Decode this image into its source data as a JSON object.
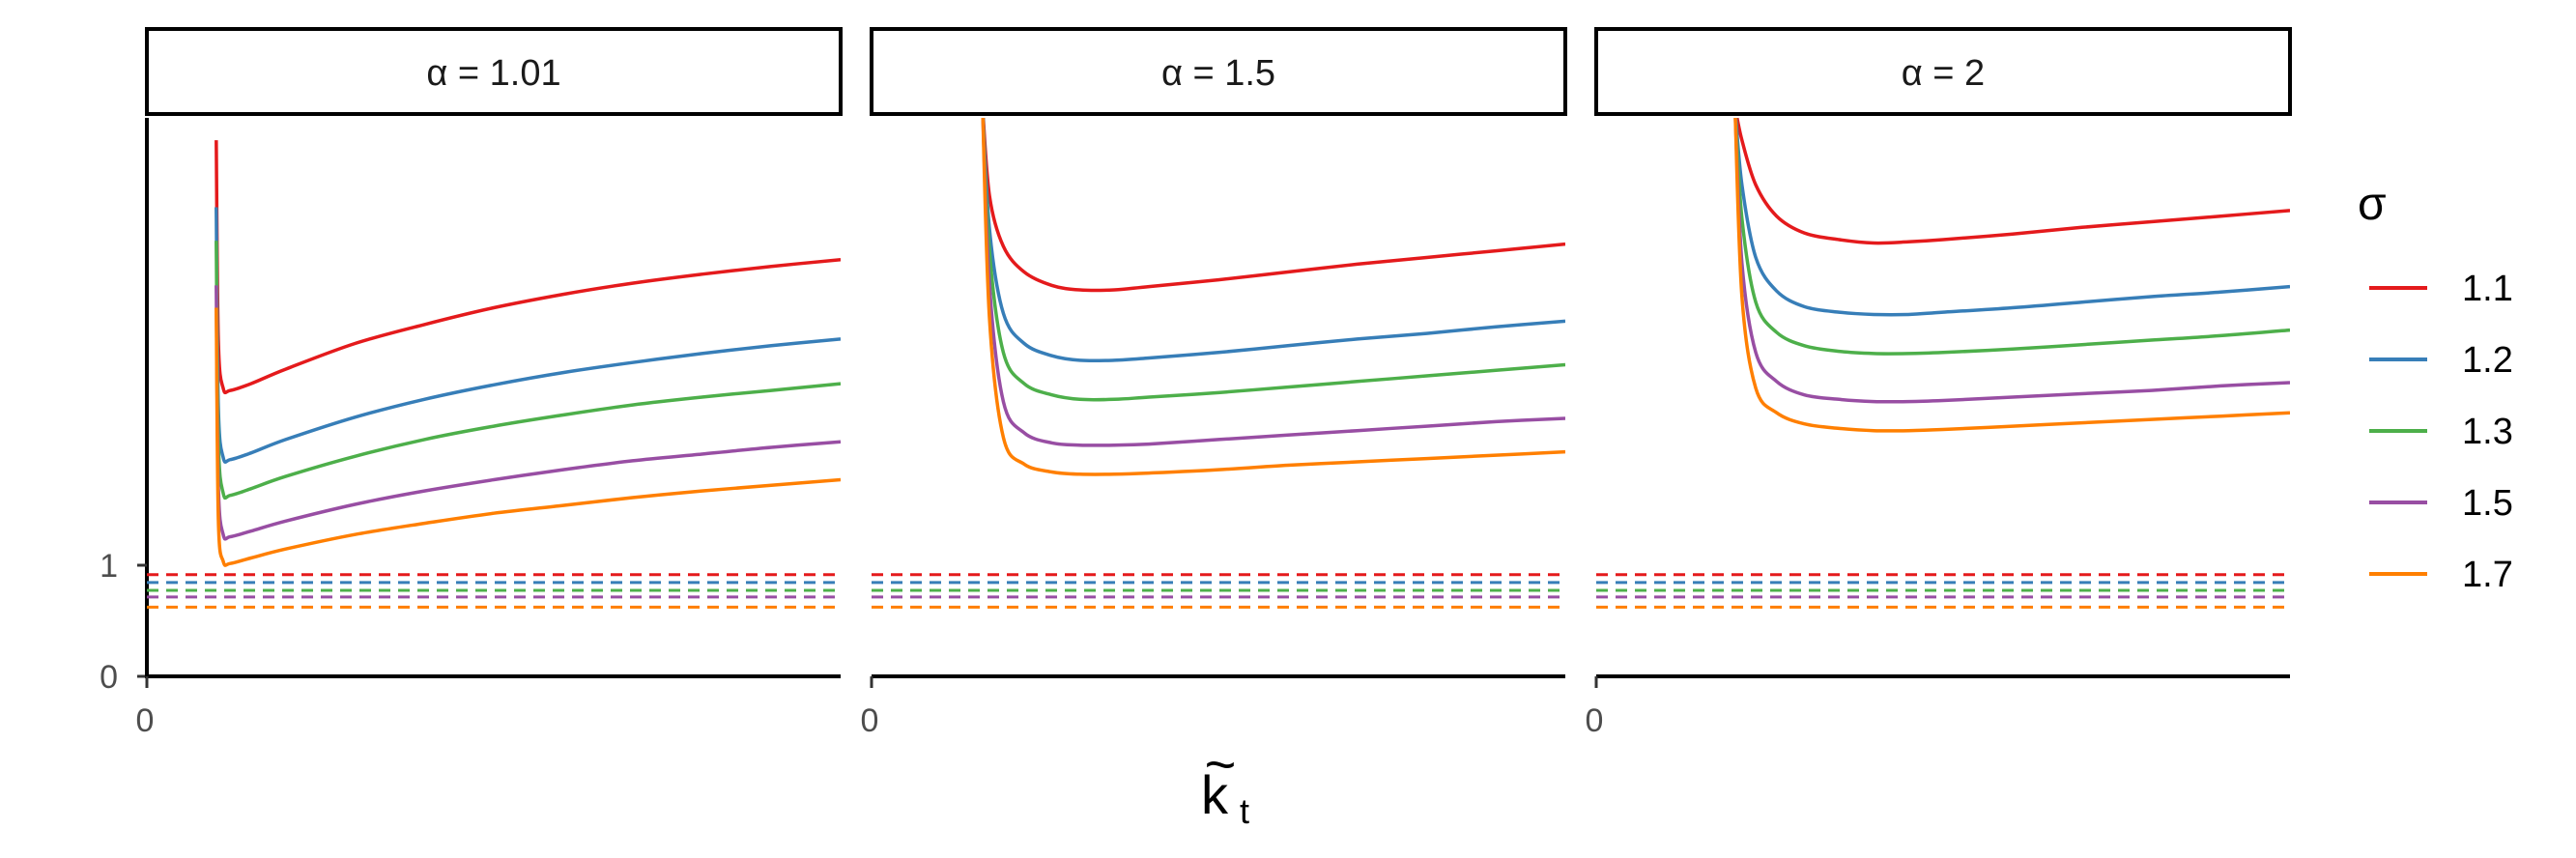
{
  "chart_data": {
    "type": "line",
    "facet_labels": [
      "α = 1.01",
      "α = 1.5",
      "α = 2"
    ],
    "xlabel_base": "k",
    "xlabel_accent": "~",
    "xlabel_subscript": "t",
    "x_tick_labels": [
      "0"
    ],
    "y_tick_labels": [
      "1",
      "0"
    ],
    "y_ticks": [
      1,
      0
    ],
    "x_range": [
      0,
      10
    ],
    "y_range": [
      0,
      5
    ],
    "grid": false,
    "legend_position": "right",
    "legend": {
      "title": "σ",
      "entries": [
        {
          "label": "1.1",
          "color": "#E41A1C"
        },
        {
          "label": "1.2",
          "color": "#377EB8"
        },
        {
          "label": "1.3",
          "color": "#4DAF4A"
        },
        {
          "label": "1.5",
          "color": "#984EA3"
        },
        {
          "label": "1.7",
          "color": "#FF7F00"
        }
      ]
    },
    "asymptotes": {
      "style": "dashed",
      "values": [
        0.91,
        0.84,
        0.77,
        0.71,
        0.62
      ]
    },
    "panels": [
      {
        "label": "α = 1.01",
        "series": [
          {
            "sigma": "1.1",
            "color": "#E41A1C",
            "x": [
              1.0,
              1.03,
              1.1,
              1.2,
              1.5,
              2.0,
              3.0,
              4.0,
              5.0,
              6.0,
              7.0,
              8.0,
              9.0,
              10.0
            ],
            "y": [
              4.8,
              3.0,
              2.58,
              2.56,
              2.62,
              2.75,
              2.98,
              3.15,
              3.3,
              3.42,
              3.52,
              3.6,
              3.67,
              3.73
            ]
          },
          {
            "sigma": "1.2",
            "color": "#377EB8",
            "x": [
              1.0,
              1.03,
              1.1,
              1.2,
              1.5,
              2.0,
              3.0,
              4.0,
              5.0,
              6.0,
              7.0,
              8.0,
              9.0,
              10.0
            ],
            "y": [
              4.2,
              2.4,
              1.96,
              1.94,
              2.0,
              2.12,
              2.32,
              2.48,
              2.61,
              2.72,
              2.81,
              2.89,
              2.96,
              3.02
            ]
          },
          {
            "sigma": "1.3",
            "color": "#4DAF4A",
            "x": [
              1.0,
              1.03,
              1.1,
              1.2,
              1.5,
              2.0,
              3.0,
              4.0,
              5.0,
              6.0,
              7.0,
              8.0,
              9.0,
              10.0
            ],
            "y": [
              3.9,
              2.1,
              1.64,
              1.62,
              1.68,
              1.79,
              1.97,
              2.12,
              2.24,
              2.34,
              2.43,
              2.5,
              2.56,
              2.62
            ]
          },
          {
            "sigma": "1.5",
            "color": "#984EA3",
            "x": [
              1.0,
              1.03,
              1.1,
              1.2,
              1.5,
              2.0,
              3.0,
              4.0,
              5.0,
              6.0,
              7.0,
              8.0,
              9.0,
              10.0
            ],
            "y": [
              3.5,
              1.7,
              1.27,
              1.25,
              1.3,
              1.39,
              1.54,
              1.66,
              1.76,
              1.85,
              1.93,
              1.99,
              2.05,
              2.1
            ]
          },
          {
            "sigma": "1.7",
            "color": "#FF7F00",
            "x": [
              1.0,
              1.03,
              1.1,
              1.2,
              1.5,
              2.0,
              3.0,
              4.0,
              5.0,
              6.0,
              7.0,
              8.0,
              9.0,
              10.0
            ],
            "y": [
              3.3,
              1.4,
              1.03,
              1.01,
              1.06,
              1.14,
              1.27,
              1.37,
              1.46,
              1.53,
              1.6,
              1.66,
              1.71,
              1.76
            ]
          }
        ]
      },
      {
        "label": "α = 1.5",
        "series": [
          {
            "sigma": "1.1",
            "color": "#E41A1C",
            "x": [
              1.6,
              1.7,
              1.9,
              2.2,
              2.6,
              3.0,
              3.5,
              4.0,
              5.0,
              6.0,
              7.0,
              8.0,
              9.0,
              10.0
            ],
            "y": [
              5.1,
              4.3,
              3.85,
              3.62,
              3.5,
              3.46,
              3.46,
              3.49,
              3.55,
              3.62,
              3.69,
              3.75,
              3.81,
              3.87
            ]
          },
          {
            "sigma": "1.2",
            "color": "#377EB8",
            "x": [
              1.6,
              1.7,
              1.9,
              2.2,
              2.6,
              3.0,
              3.5,
              4.0,
              5.0,
              6.0,
              7.0,
              8.0,
              9.0,
              10.0
            ],
            "y": [
              5.1,
              4.0,
              3.25,
              2.98,
              2.87,
              2.83,
              2.83,
              2.85,
              2.9,
              2.96,
              3.02,
              3.07,
              3.13,
              3.18
            ]
          },
          {
            "sigma": "1.3",
            "color": "#4DAF4A",
            "x": [
              1.6,
              1.7,
              1.9,
              2.2,
              2.6,
              3.0,
              3.5,
              4.0,
              5.0,
              6.0,
              7.0,
              8.0,
              9.0,
              10.0
            ],
            "y": [
              5.1,
              3.8,
              2.9,
              2.62,
              2.52,
              2.48,
              2.48,
              2.5,
              2.54,
              2.59,
              2.64,
              2.69,
              2.74,
              2.79
            ]
          },
          {
            "sigma": "1.5",
            "color": "#984EA3",
            "x": [
              1.6,
              1.7,
              1.9,
              2.2,
              2.6,
              3.0,
              3.5,
              4.0,
              5.0,
              6.0,
              7.0,
              8.0,
              9.0,
              10.0
            ],
            "y": [
              5.1,
              3.5,
              2.46,
              2.18,
              2.09,
              2.07,
              2.07,
              2.08,
              2.12,
              2.16,
              2.2,
              2.24,
              2.28,
              2.31
            ]
          },
          {
            "sigma": "1.7",
            "color": "#FF7F00",
            "x": [
              1.6,
              1.7,
              1.9,
              2.2,
              2.6,
              3.0,
              3.5,
              4.0,
              5.0,
              6.0,
              7.0,
              8.0,
              9.0,
              10.0
            ],
            "y": [
              5.1,
              3.2,
              2.14,
              1.9,
              1.83,
              1.81,
              1.81,
              1.82,
              1.85,
              1.89,
              1.92,
              1.95,
              1.98,
              2.01
            ]
          }
        ]
      },
      {
        "label": "α = 2",
        "series": [
          {
            "sigma": "1.1",
            "color": "#E41A1C",
            "x": [
              2.0,
              2.1,
              2.3,
              2.6,
              3.0,
              3.5,
              4.0,
              4.5,
              5.0,
              6.0,
              7.0,
              8.0,
              9.0,
              10.0
            ],
            "y": [
              5.1,
              4.8,
              4.4,
              4.12,
              3.97,
              3.91,
              3.88,
              3.89,
              3.91,
              3.96,
              4.02,
              4.07,
              4.12,
              4.17
            ]
          },
          {
            "sigma": "1.2",
            "color": "#377EB8",
            "x": [
              2.0,
              2.1,
              2.3,
              2.6,
              3.0,
              3.5,
              4.0,
              4.5,
              5.0,
              6.0,
              7.0,
              8.0,
              9.0,
              10.0
            ],
            "y": [
              5.1,
              4.4,
              3.75,
              3.45,
              3.31,
              3.26,
              3.24,
              3.24,
              3.26,
              3.3,
              3.35,
              3.4,
              3.44,
              3.49
            ]
          },
          {
            "sigma": "1.3",
            "color": "#4DAF4A",
            "x": [
              2.0,
              2.1,
              2.3,
              2.6,
              3.0,
              3.5,
              4.0,
              4.5,
              5.0,
              6.0,
              7.0,
              8.0,
              9.0,
              10.0
            ],
            "y": [
              5.1,
              4.1,
              3.35,
              3.08,
              2.96,
              2.91,
              2.89,
              2.89,
              2.9,
              2.93,
              2.97,
              3.01,
              3.05,
              3.1
            ]
          },
          {
            "sigma": "1.5",
            "color": "#984EA3",
            "x": [
              2.0,
              2.1,
              2.3,
              2.6,
              3.0,
              3.5,
              4.0,
              4.5,
              5.0,
              6.0,
              7.0,
              8.0,
              9.0,
              10.0
            ],
            "y": [
              5.1,
              3.7,
              2.9,
              2.64,
              2.52,
              2.48,
              2.46,
              2.46,
              2.47,
              2.5,
              2.53,
              2.56,
              2.6,
              2.63
            ]
          },
          {
            "sigma": "1.7",
            "color": "#FF7F00",
            "x": [
              2.0,
              2.1,
              2.3,
              2.6,
              3.0,
              3.5,
              4.0,
              4.5,
              5.0,
              6.0,
              7.0,
              8.0,
              9.0,
              10.0
            ],
            "y": [
              5.1,
              3.4,
              2.58,
              2.36,
              2.26,
              2.22,
              2.2,
              2.2,
              2.21,
              2.24,
              2.27,
              2.3,
              2.33,
              2.36
            ]
          }
        ]
      }
    ]
  }
}
